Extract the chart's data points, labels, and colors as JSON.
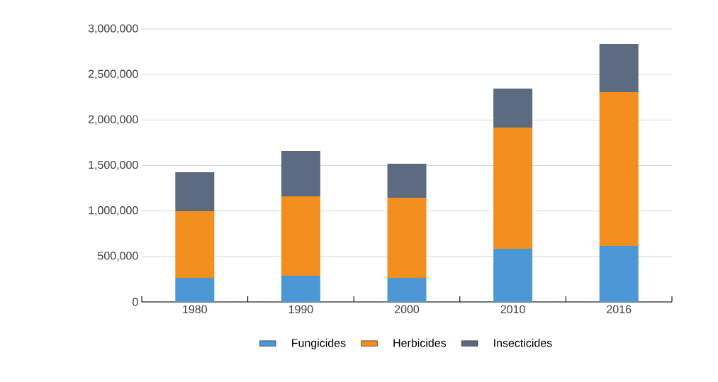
{
  "chart_data": {
    "type": "bar",
    "stacked": true,
    "categories": [
      "1980",
      "1990",
      "2000",
      "2010",
      "2016"
    ],
    "series": [
      {
        "name": "Fungicides",
        "color": "#4e97d6",
        "values": [
          265000,
          288000,
          265000,
          584000,
          616000
        ]
      },
      {
        "name": "Herbicides",
        "color": "#f28f1f",
        "values": [
          732000,
          873000,
          880000,
          1333000,
          1690000
        ]
      },
      {
        "name": "Insecticides",
        "color": "#5c6b80",
        "values": [
          429000,
          499000,
          374000,
          428000,
          530000
        ]
      }
    ],
    "ylim": [
      0,
      3000000
    ],
    "yticks": [
      0,
      {
        "value": 500000,
        "label": "500,000"
      },
      {
        "value": 1000000,
        "label": "1,000,000"
      },
      {
        "value": 1500000,
        "label": "1,500,000"
      },
      {
        "value": 2000000,
        "label": "2,000,000"
      },
      {
        "value": 2500000,
        "label": "2,500,000"
      },
      {
        "value": 3000000,
        "label": "3,000,000"
      }
    ],
    "grid": "y",
    "legend": "bottom"
  }
}
